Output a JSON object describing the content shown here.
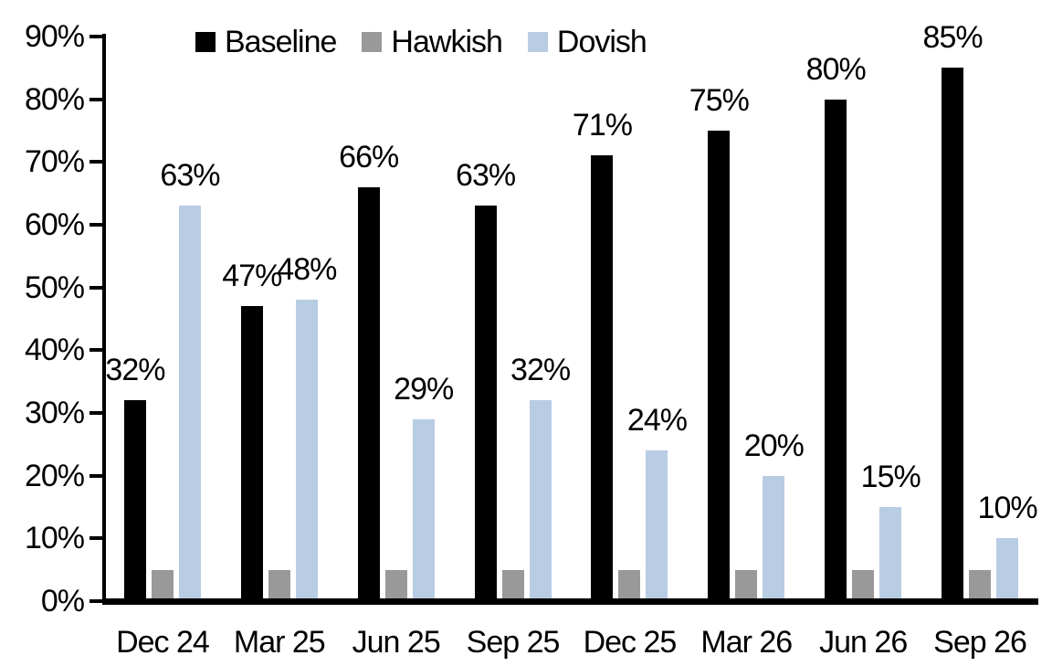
{
  "chart_data": {
    "type": "bar",
    "title": "",
    "xlabel": "",
    "ylabel": "",
    "grid": false,
    "legend_position": "top",
    "categories": [
      "Dec 24",
      "Mar 25",
      "Jun 25",
      "Sep 25",
      "Dec 25",
      "Mar 26",
      "Jun 26",
      "Sep 26"
    ],
    "series": [
      {
        "name": "Baseline",
        "color": "#000000",
        "values": [
          32,
          47,
          66,
          63,
          71,
          75,
          80,
          85
        ],
        "show_labels": true
      },
      {
        "name": "Hawkish",
        "color": "#999999",
        "values": [
          5,
          5,
          5,
          5,
          5,
          5,
          5,
          5
        ],
        "show_labels": false
      },
      {
        "name": "Dovish",
        "color": "#B8CCE4",
        "values": [
          63,
          48,
          29,
          32,
          24,
          20,
          15,
          10
        ],
        "show_labels": true
      }
    ],
    "ylim": [
      0,
      90
    ],
    "ytick_step": 10,
    "ytick_labels": [
      "0%",
      "10%",
      "20%",
      "30%",
      "40%",
      "50%",
      "60%",
      "70%",
      "80%",
      "90%"
    ],
    "label_suffix": "%"
  }
}
